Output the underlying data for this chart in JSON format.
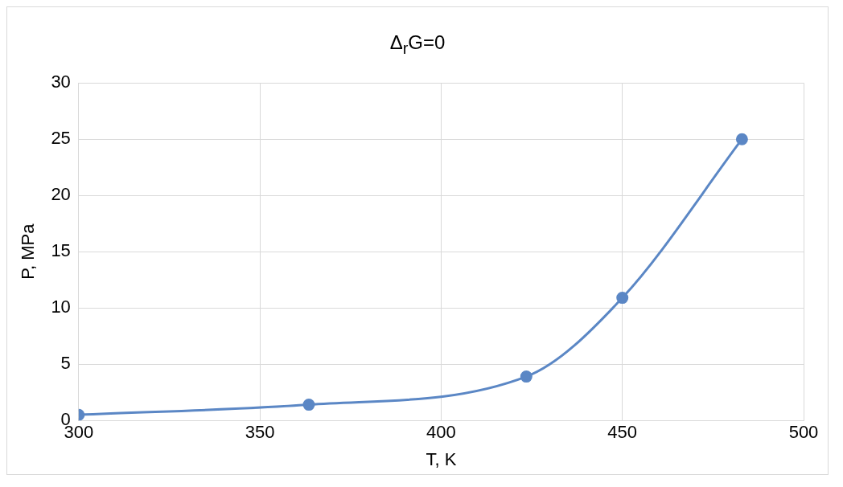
{
  "chart_data": {
    "type": "line",
    "title": "Δ$_{r}$G=0",
    "xlabel": "T, K",
    "ylabel": "P, MPa",
    "x": [
      300,
      363.5,
      423.5,
      450,
      483
    ],
    "series": [
      {
        "color": "#5b87c5",
        "values": [
          0.5,
          1.4,
          3.9,
          10.9,
          25
        ]
      }
    ],
    "xlim": [
      300,
      500
    ],
    "xticks": [
      300,
      350,
      400,
      450,
      500
    ],
    "ylim": [
      0,
      30
    ],
    "yticks": [
      0,
      5,
      10,
      15,
      20,
      25,
      30
    ],
    "grid": true,
    "legend": false,
    "marker": "circle",
    "line_style": "solid"
  }
}
